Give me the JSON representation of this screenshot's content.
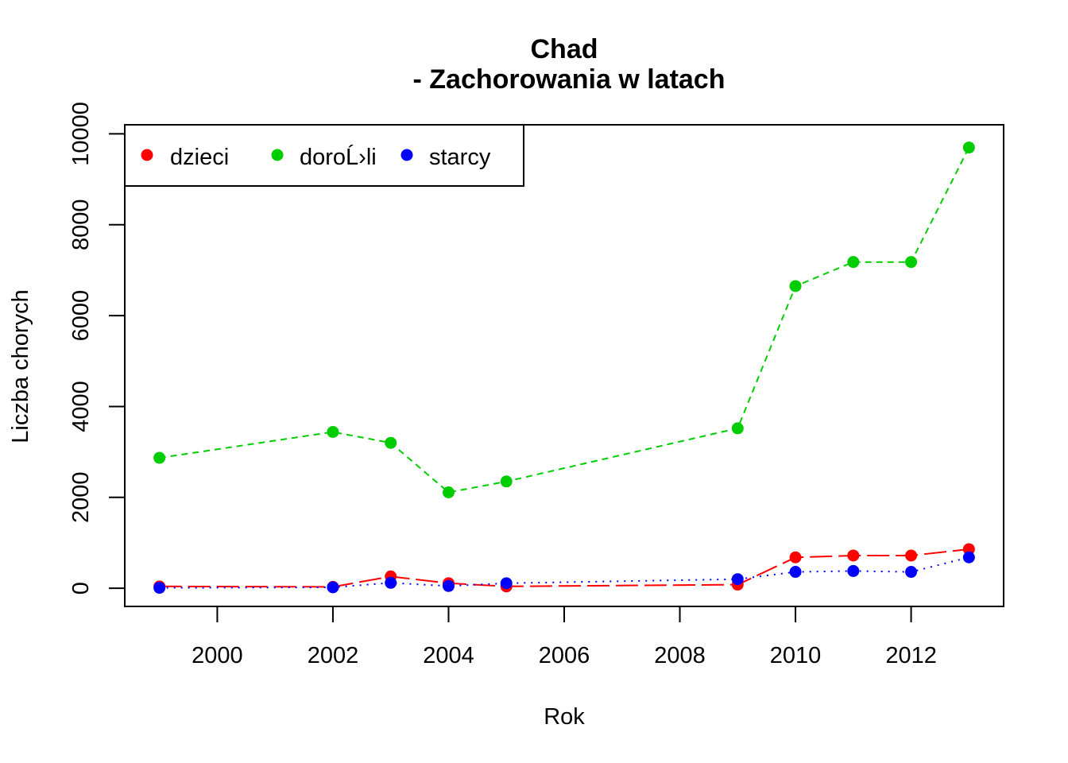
{
  "chart_data": {
    "type": "line",
    "title": "Chad",
    "subtitle": "- Zachorowania w latach",
    "xlabel": "Rok",
    "ylabel": "Liczba chorych",
    "xlim": [
      1998.4,
      2013.6
    ],
    "ylim": [
      -400,
      10200
    ],
    "x_ticks": [
      2000,
      2002,
      2004,
      2006,
      2008,
      2010,
      2012
    ],
    "y_ticks": [
      0,
      2000,
      4000,
      6000,
      8000,
      10000
    ],
    "x_tick_labels": [
      "2000",
      "2002",
      "2004",
      "2006",
      "2008",
      "2010",
      "2012"
    ],
    "y_tick_labels": [
      "0",
      "2000",
      "4000",
      "6000",
      "8000",
      "10000"
    ],
    "legend_position": "top-left",
    "x": [
      1999,
      2002,
      2003,
      2004,
      2005,
      2009,
      2010,
      2011,
      2012,
      2013
    ],
    "series": [
      {
        "name": "dzieci",
        "color": "#ff0000",
        "line_style": "long-dash",
        "values": [
          40,
          30,
          260,
          110,
          40,
          80,
          680,
          720,
          720,
          860
        ]
      },
      {
        "name": "doroĹ›li",
        "color": "#00cd00",
        "line_style": "dashed",
        "values": [
          2870,
          3440,
          3200,
          2110,
          2350,
          3520,
          6650,
          7180,
          7180,
          9700
        ]
      },
      {
        "name": "starcy",
        "color": "#0000ff",
        "line_style": "dotted",
        "values": [
          10,
          20,
          120,
          50,
          110,
          200,
          360,
          380,
          360,
          680
        ]
      }
    ]
  }
}
